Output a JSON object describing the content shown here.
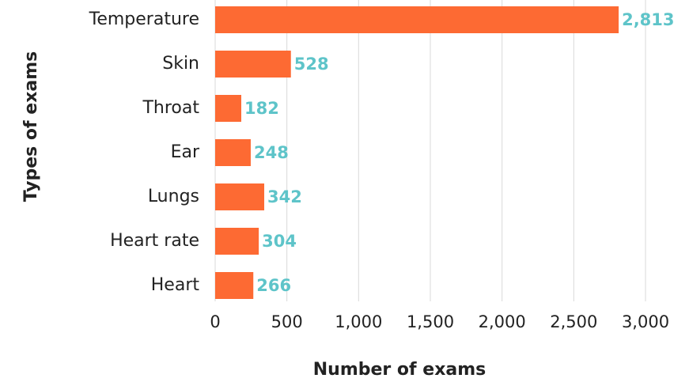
{
  "chart_data": {
    "type": "bar",
    "orientation": "horizontal",
    "x_label": "Number of exams",
    "y_label": "Types of exams",
    "categories": [
      "Temperature",
      "Skin",
      "Throat",
      "Ear",
      "Lungs",
      "Heart rate",
      "Heart"
    ],
    "values": [
      2813,
      528,
      182,
      248,
      342,
      304,
      266
    ],
    "value_labels": [
      "2,813",
      "528",
      "182",
      "248",
      "342",
      "304",
      "266"
    ],
    "color": "#fd6a33",
    "xlim": [
      0,
      3000
    ],
    "xticks": [
      0,
      500,
      {
        "value": 1000,
        "label": "1,000"
      },
      {
        "value": 1500,
        "label": "1,500"
      },
      {
        "value": 2000,
        "label": "2,000"
      },
      {
        "value": 2500,
        "label": "2,500"
      },
      {
        "value": 3000,
        "label": "3,000"
      }
    ],
    "grid": true
  }
}
